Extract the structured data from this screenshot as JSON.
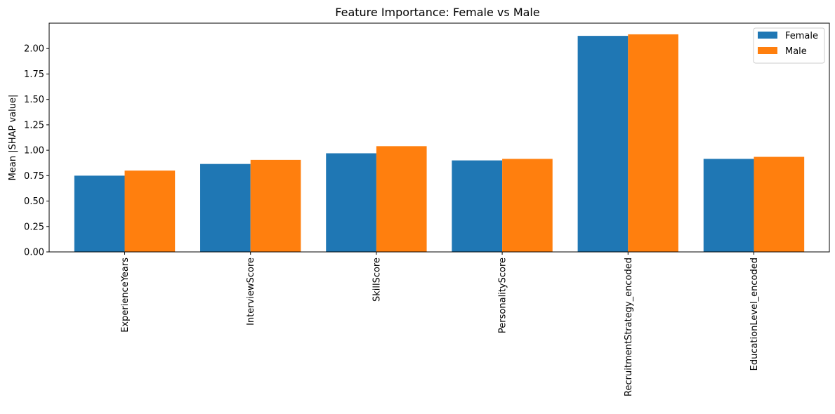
{
  "chart_data": {
    "type": "bar",
    "title": "Feature Importance: Female vs Male",
    "xlabel": "",
    "ylabel": "Mean |SHAP value|",
    "categories": [
      "ExperienceYears",
      "InterviewScore",
      "SkillScore",
      "PersonalityScore",
      "RecruitmentStrategy_encoded",
      "EducationLevel_encoded"
    ],
    "series": [
      {
        "name": "Female",
        "color": "#1f77b4",
        "values": [
          0.75,
          0.865,
          0.97,
          0.9,
          2.125,
          0.915
        ]
      },
      {
        "name": "Male",
        "color": "#ff7f0e",
        "values": [
          0.8,
          0.905,
          1.04,
          0.915,
          2.14,
          0.935
        ]
      }
    ],
    "ylim": [
      0,
      2.25
    ],
    "yticks": [
      "0.00",
      "0.25",
      "0.50",
      "0.75",
      "1.00",
      "1.25",
      "1.50",
      "1.75",
      "2.00"
    ],
    "grid": false,
    "legend": "top-right"
  }
}
